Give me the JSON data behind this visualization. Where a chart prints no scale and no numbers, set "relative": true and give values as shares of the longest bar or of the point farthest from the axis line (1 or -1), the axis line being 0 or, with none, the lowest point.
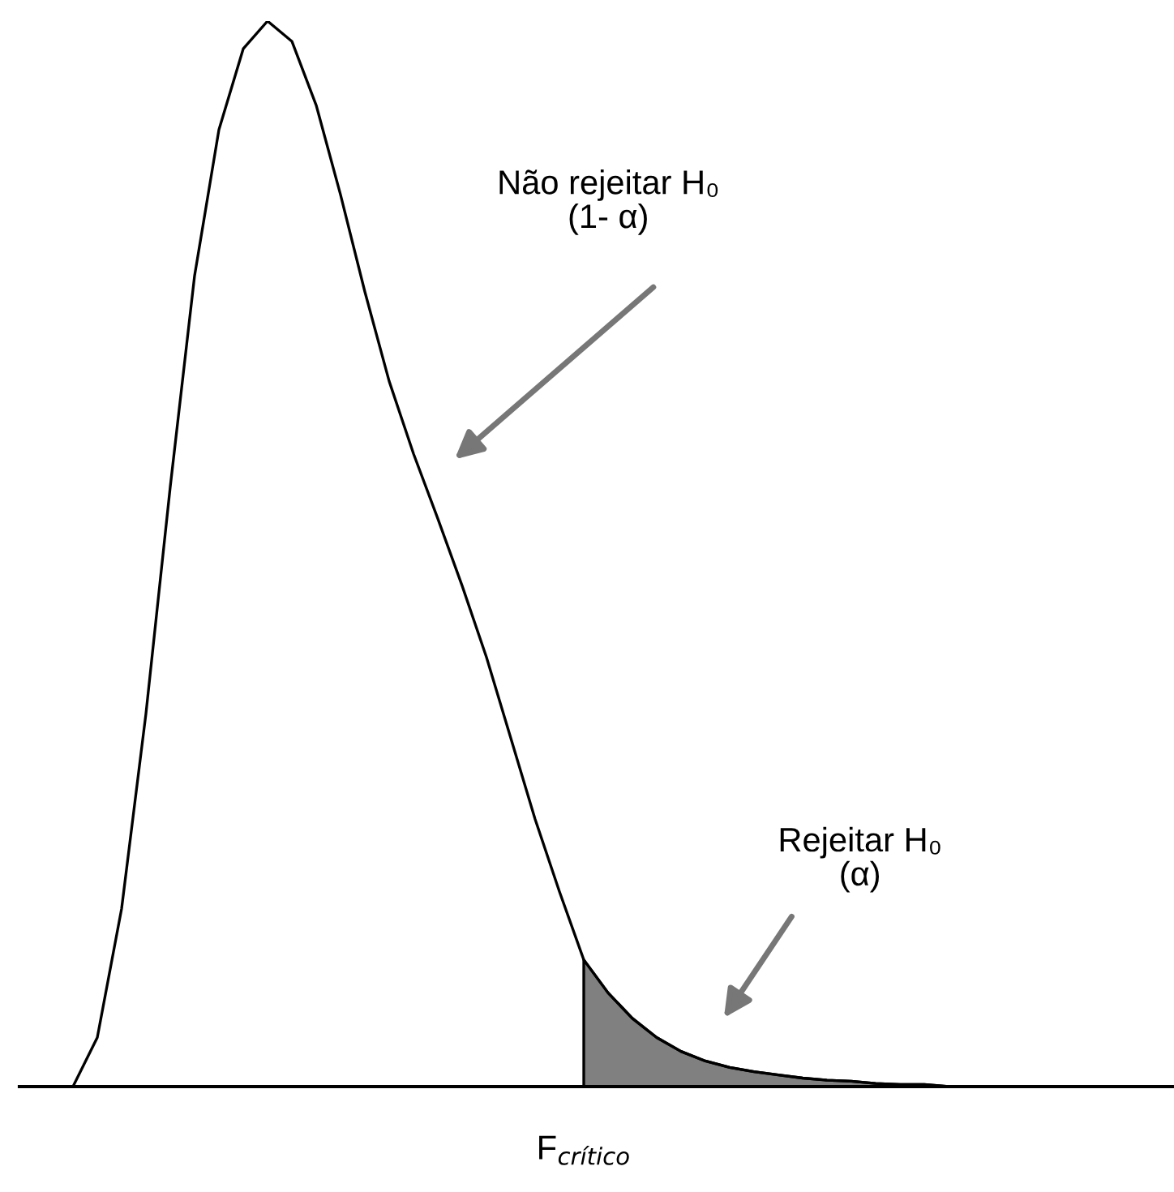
{
  "chart_data": {
    "type": "line",
    "relative": true,
    "categories": [
      null,
      null,
      null,
      null,
      null,
      null,
      null,
      null,
      null,
      null,
      null,
      null,
      null,
      null,
      null,
      null,
      null,
      null,
      null,
      null,
      null,
      null,
      null,
      null,
      null,
      null,
      null,
      null,
      null,
      null,
      null,
      null,
      null,
      null,
      null,
      null,
      null,
      null
    ],
    "series": [
      {
        "type": "line",
        "color": "#000000",
        "values": [
          0,
          0.046,
          0.167,
          0.35,
          0.563,
          0.761,
          0.898,
          0.974,
          1,
          0.981,
          0.921,
          0.837,
          0.746,
          0.662,
          0.594,
          0.533,
          0.47,
          0.403,
          0.327,
          0.251,
          0.183,
          0.119,
          0.088,
          0.064,
          0.046,
          0.033,
          0.024,
          0.018,
          0.014,
          0.011,
          0.008,
          0.006,
          0.005,
          0.003,
          0.002,
          0.002,
          0.0,
          0.0
        ]
      },
      {
        "type": "area",
        "color": "#808080",
        "values": [
          null,
          null,
          null,
          null,
          null,
          null,
          null,
          null,
          null,
          null,
          null,
          null,
          null,
          null,
          null,
          null,
          null,
          null,
          null,
          null,
          null,
          0.119,
          0.088,
          0.064,
          0.046,
          0.033,
          0.024,
          0.018,
          0.014,
          0.011,
          0.008,
          0.006,
          0.005,
          0.003,
          0.002,
          0.002,
          0.0,
          0.0
        ]
      }
    ],
    "annotations": [
      "F$_{crítico}$",
      "Não rejeitar H₀\n(1- α)",
      "Rejeitar H₀\n(α)"
    ]
  }
}
